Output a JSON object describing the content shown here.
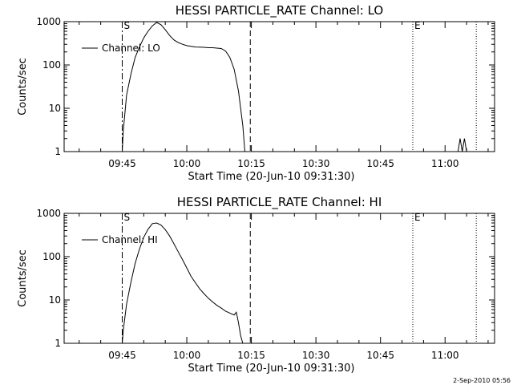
{
  "footer_timestamp": "2-Sep-2010 05:56",
  "chart_data": [
    {
      "type": "line",
      "title": "HESSI PARTICLE_RATE Channel: LO",
      "xlabel": "Start Time (20-Jun-10 09:31:30)",
      "ylabel": "Counts/sec",
      "y_scale": "log",
      "ylim": [
        1,
        1000
      ],
      "xlim": [
        "09:31:30",
        "11:11:30"
      ],
      "x_ticks": [
        "09:45",
        "10:00",
        "10:15",
        "10:30",
        "10:45",
        "11:00"
      ],
      "y_ticks": [
        "1",
        "10",
        "100",
        "1000"
      ],
      "legend": {
        "position": "top-left",
        "entries": [
          "Channel: LO"
        ]
      },
      "markers": [
        {
          "label": "S",
          "time": "09:45:00",
          "style": "dash-dot"
        },
        {
          "label": "",
          "time": "10:14:45",
          "style": "dashed"
        },
        {
          "label": "E",
          "time": "10:52:30",
          "style": "dotted"
        },
        {
          "label": "",
          "time": "11:07:15",
          "style": "dotted"
        }
      ],
      "series": [
        {
          "name": "Channel: LO",
          "segments": [
            {
              "x": [
                "09:45:00",
                "09:45:15",
                "09:46:00",
                "09:47:00",
                "09:48:00",
                "09:49:00",
                "09:50:00",
                "09:51:00",
                "09:52:00",
                "09:53:00",
                "09:54:00",
                "09:55:00",
                "09:56:00",
                "09:57:00",
                "09:58:00",
                "09:59:00",
                "10:00:00",
                "10:01:00",
                "10:02:00",
                "10:03:00",
                "10:04:00",
                "10:05:00",
                "10:06:00",
                "10:07:00",
                "10:08:00",
                "10:09:00",
                "10:10:00",
                "10:11:00",
                "10:12:00",
                "10:13:00",
                "10:13:30"
              ],
              "y": [
                1,
                3,
                20,
                60,
                150,
                260,
                420,
                600,
                800,
                960,
                850,
                650,
                480,
                380,
                330,
                300,
                280,
                270,
                260,
                258,
                255,
                250,
                250,
                245,
                240,
                210,
                150,
                80,
                25,
                4,
                1
              ]
            },
            {
              "x": [
                "11:03:00",
                "11:03:30",
                "11:04:00",
                "11:04:30",
                "11:05:00"
              ],
              "y": [
                1,
                2,
                1,
                2,
                1
              ]
            }
          ]
        }
      ]
    },
    {
      "type": "line",
      "title": "HESSI PARTICLE_RATE Channel: HI",
      "xlabel": "Start Time (20-Jun-10 09:31:30)",
      "ylabel": "Counts/sec",
      "y_scale": "log",
      "ylim": [
        1,
        1000
      ],
      "xlim": [
        "09:31:30",
        "11:11:30"
      ],
      "x_ticks": [
        "09:45",
        "10:00",
        "10:15",
        "10:30",
        "10:45",
        "11:00"
      ],
      "y_ticks": [
        "1",
        "10",
        "100",
        "1000"
      ],
      "legend": {
        "position": "top-left",
        "entries": [
          "Channel: HI"
        ]
      },
      "markers": [
        {
          "label": "S",
          "time": "09:45:00",
          "style": "dash-dot"
        },
        {
          "label": "",
          "time": "10:14:45",
          "style": "dashed"
        },
        {
          "label": "E",
          "time": "10:52:30",
          "style": "dotted"
        },
        {
          "label": "",
          "time": "11:07:15",
          "style": "dotted"
        }
      ],
      "series": [
        {
          "name": "Channel: HI",
          "segments": [
            {
              "x": [
                "09:45:00",
                "09:45:15",
                "09:46:00",
                "09:47:00",
                "09:48:00",
                "09:49:00",
                "09:50:00",
                "09:51:00",
                "09:52:00",
                "09:53:00",
                "09:54:00",
                "09:55:00",
                "09:56:00",
                "09:57:00",
                "09:58:00",
                "09:59:00",
                "10:00:00",
                "10:01:00",
                "10:02:00",
                "10:03:00",
                "10:04:00",
                "10:05:00",
                "10:06:00",
                "10:07:00",
                "10:08:00",
                "10:09:00",
                "10:10:00",
                "10:11:00",
                "10:11:30",
                "10:12:00",
                "10:12:30",
                "10:13:00"
              ],
              "y": [
                1,
                2,
                8,
                25,
                70,
                150,
                280,
                430,
                580,
                600,
                540,
                420,
                300,
                200,
                130,
                85,
                55,
                35,
                25,
                18,
                14,
                11,
                9,
                7.5,
                6.5,
                5.5,
                5,
                4.5,
                5.2,
                3,
                1.5,
                1
              ]
            }
          ]
        }
      ]
    }
  ]
}
